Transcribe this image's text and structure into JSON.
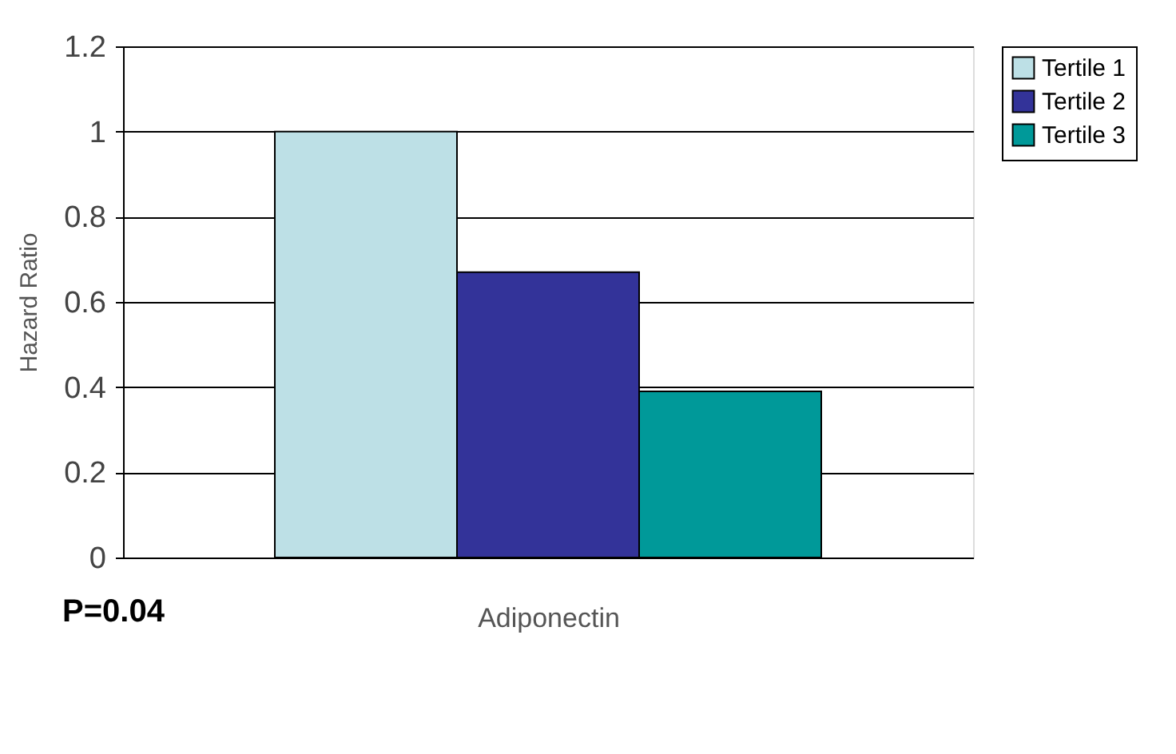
{
  "chart_data": {
    "type": "bar",
    "xlabel": "Adiponectin",
    "ylabel": "Hazard Ratio",
    "categories": [
      null
    ],
    "series": [
      {
        "name": "Tertile 1",
        "color": "#bde0e6",
        "values": [
          1.0
        ]
      },
      {
        "name": "Tertile 2",
        "color": "#333399",
        "values": [
          0.67
        ]
      },
      {
        "name": "Tertile 3",
        "color": "#009999",
        "values": [
          0.39
        ]
      }
    ],
    "ylim": [
      0,
      1.2
    ],
    "yticks": [
      0,
      0.2,
      0.4,
      0.6,
      0.8,
      1,
      1.2
    ],
    "grid": "y",
    "legend": "right",
    "tick_labels": "y",
    "annotations": [
      "P=0.04"
    ]
  }
}
